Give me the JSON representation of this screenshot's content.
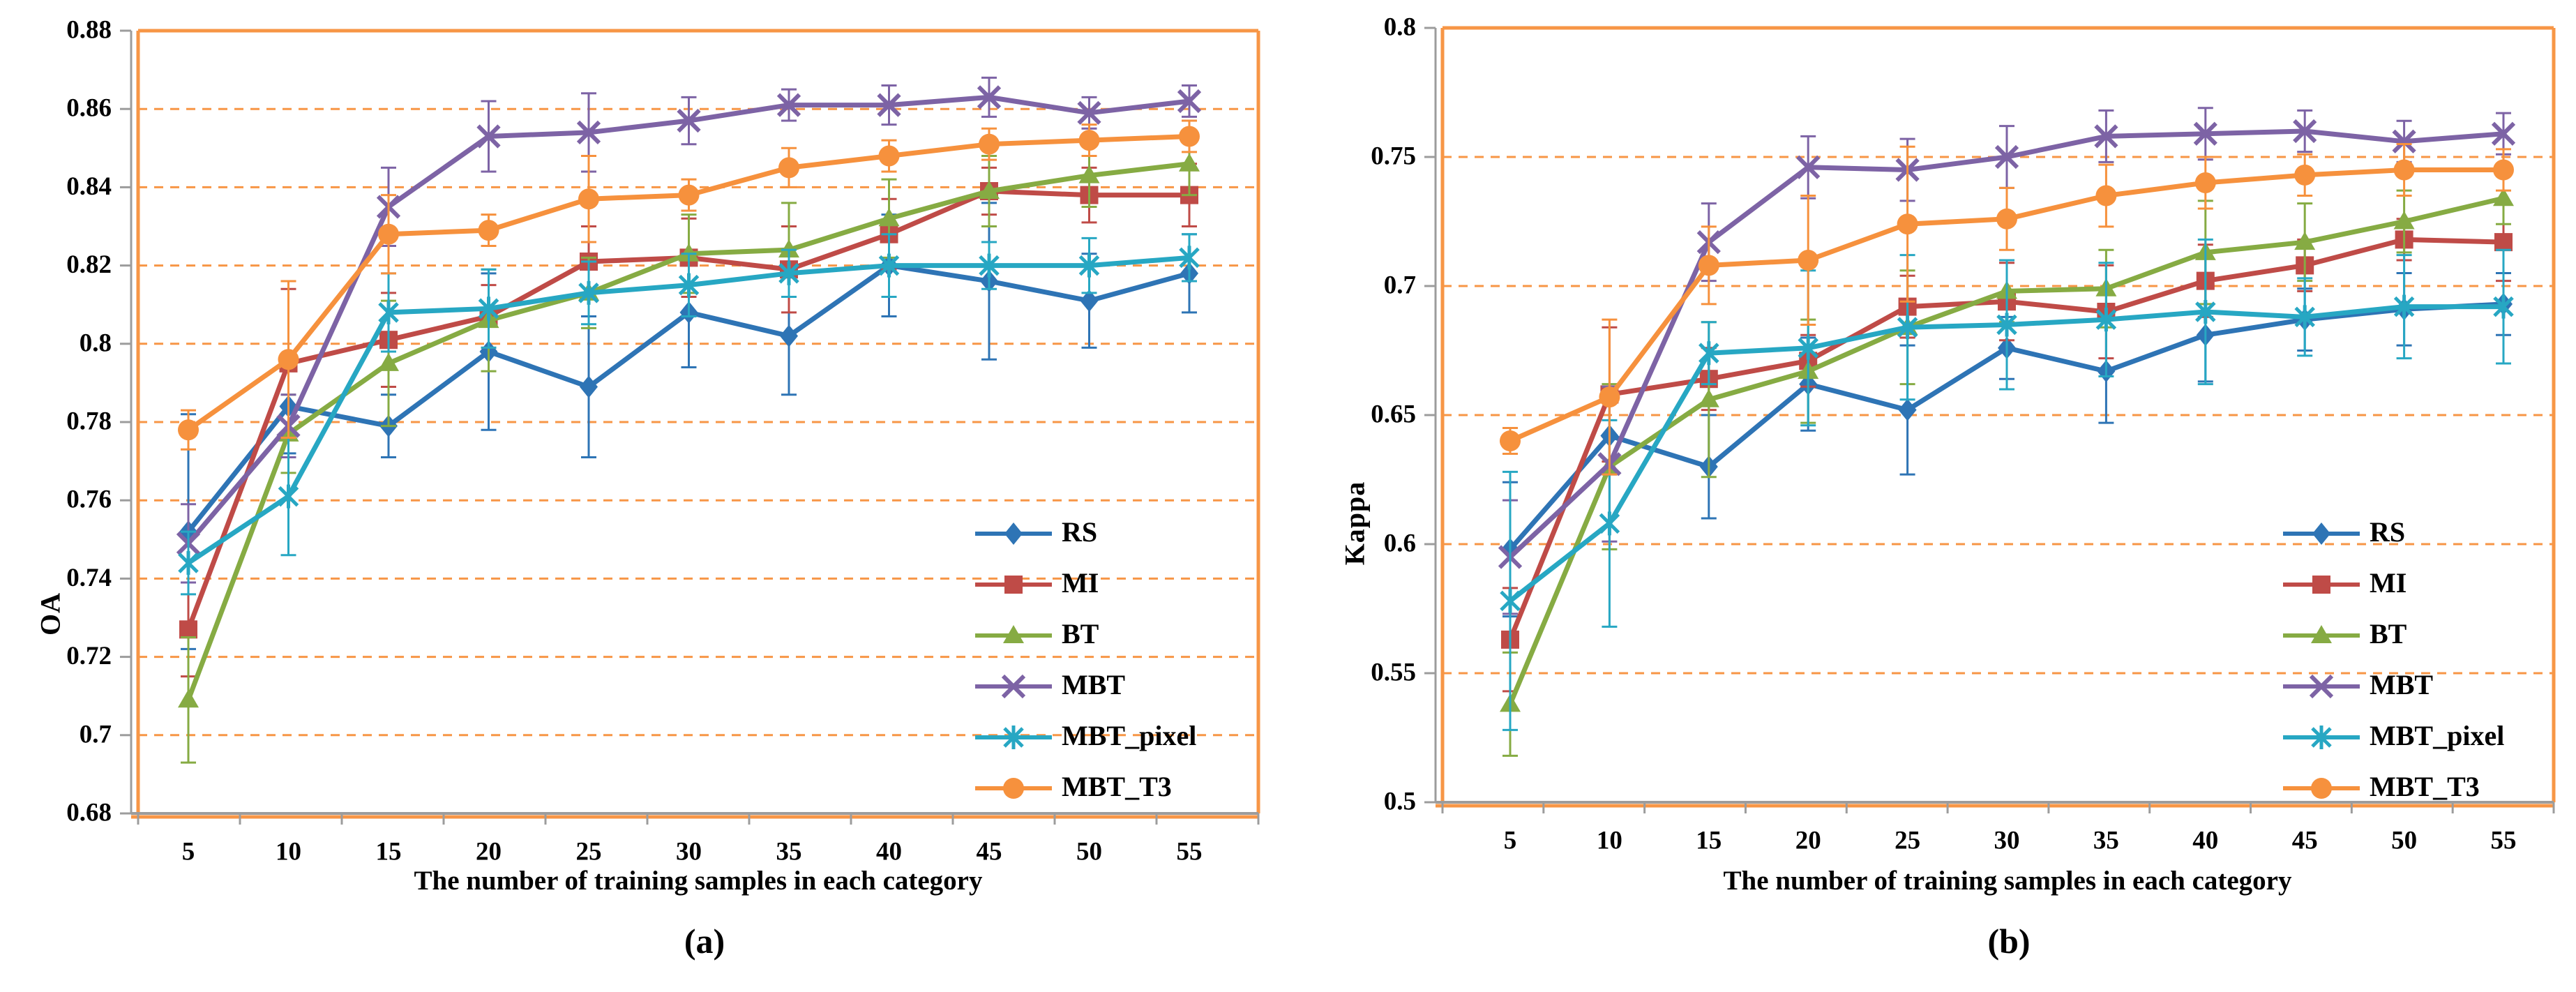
{
  "figure": {
    "captions": [
      "(a)",
      "(b)"
    ],
    "colors": {
      "grid_orange": "#F79646",
      "axis_gray": "#9C9C9C",
      "text": "#000000"
    }
  },
  "chart_data": [
    {
      "type": "line",
      "title": "",
      "ylabel": "OA",
      "xlabel": "The number of training samples in each category",
      "categories": [
        5,
        10,
        15,
        20,
        25,
        30,
        35,
        40,
        45,
        50,
        55
      ],
      "ylim": [
        0.68,
        0.88
      ],
      "ytick_labels": [
        "0.88",
        "0.86",
        "0.84",
        "0.82",
        "0.8",
        "0.78",
        "0.76",
        "0.74",
        "0.72",
        "0.7",
        "0.68"
      ],
      "grid": true,
      "legend_position": "inside-right-bottom",
      "series": [
        {
          "name": "RS",
          "marker": "diamond",
          "color": "#2E74B5",
          "values": [
            0.752,
            0.784,
            0.779,
            0.798,
            0.789,
            0.808,
            0.802,
            0.82,
            0.816,
            0.811,
            0.818
          ],
          "errors": [
            0.03,
            0.012,
            0.008,
            0.02,
            0.018,
            0.014,
            0.015,
            0.013,
            0.02,
            0.012,
            0.01
          ]
        },
        {
          "name": "MI",
          "marker": "square",
          "color": "#BF4B47",
          "values": [
            0.727,
            0.795,
            0.801,
            0.807,
            0.821,
            0.822,
            0.819,
            0.828,
            0.839,
            0.838,
            0.838
          ],
          "errors": [
            0.012,
            0.019,
            0.012,
            0.008,
            0.009,
            0.01,
            0.011,
            0.009,
            0.006,
            0.007,
            0.008
          ]
        },
        {
          "name": "BT",
          "marker": "triangle",
          "color": "#86AB43",
          "values": [
            0.709,
            0.777,
            0.795,
            0.806,
            0.813,
            0.823,
            0.824,
            0.832,
            0.839,
            0.843,
            0.846
          ],
          "errors": [
            0.016,
            0.01,
            0.016,
            0.013,
            0.009,
            0.01,
            0.012,
            0.01,
            0.009,
            0.008,
            0.008
          ]
        },
        {
          "name": "MBT",
          "marker": "xcross",
          "color": "#7D63A5",
          "values": [
            0.749,
            0.779,
            0.835,
            0.853,
            0.854,
            0.857,
            0.861,
            0.861,
            0.863,
            0.859,
            0.862
          ],
          "errors": [
            0.01,
            0.008,
            0.01,
            0.009,
            0.01,
            0.006,
            0.004,
            0.005,
            0.005,
            0.004,
            0.004
          ]
        },
        {
          "name": "MBT_pixel",
          "marker": "asterisk",
          "color": "#27A7C3",
          "values": [
            0.744,
            0.761,
            0.808,
            0.809,
            0.813,
            0.815,
            0.818,
            0.82,
            0.82,
            0.82,
            0.822
          ],
          "errors": [
            0.008,
            0.015,
            0.01,
            0.01,
            0.008,
            0.008,
            0.006,
            0.008,
            0.006,
            0.007,
            0.006
          ]
        },
        {
          "name": "MBT_T3",
          "marker": "circle",
          "color": "#F6913D",
          "values": [
            0.778,
            0.796,
            0.828,
            0.829,
            0.837,
            0.838,
            0.845,
            0.848,
            0.851,
            0.852,
            0.853
          ],
          "errors": [
            0.005,
            0.02,
            0.01,
            0.004,
            0.011,
            0.004,
            0.005,
            0.004,
            0.004,
            0.004,
            0.004
          ]
        }
      ]
    },
    {
      "type": "line",
      "title": "",
      "ylabel": "Kappa",
      "xlabel": "The number of training samples in each category",
      "categories": [
        5,
        10,
        15,
        20,
        25,
        30,
        35,
        40,
        45,
        50,
        55
      ],
      "ylim": [
        0.5,
        0.8
      ],
      "ytick_labels": [
        "0.8",
        "0.75",
        "0.7",
        "0.65",
        "0.6",
        "0.55",
        "0.5"
      ],
      "grid": true,
      "legend_position": "inside-right-bottom",
      "series": [
        {
          "name": "RS",
          "marker": "diamond",
          "color": "#2E74B5",
          "values": [
            0.598,
            0.642,
            0.63,
            0.662,
            0.652,
            0.676,
            0.667,
            0.681,
            0.687,
            0.691,
            0.693
          ],
          "errors": [
            0.026,
            0.015,
            0.02,
            0.018,
            0.025,
            0.012,
            0.02,
            0.018,
            0.012,
            0.014,
            0.012
          ]
        },
        {
          "name": "MI",
          "marker": "square",
          "color": "#BF4B47",
          "values": [
            0.563,
            0.658,
            0.664,
            0.671,
            0.692,
            0.694,
            0.69,
            0.702,
            0.708,
            0.718,
            0.717
          ],
          "errors": [
            0.02,
            0.026,
            0.012,
            0.01,
            0.012,
            0.015,
            0.018,
            0.014,
            0.01,
            0.008,
            0.015
          ]
        },
        {
          "name": "BT",
          "marker": "triangle",
          "color": "#86AB43",
          "values": [
            0.538,
            0.63,
            0.656,
            0.667,
            0.684,
            0.698,
            0.699,
            0.713,
            0.717,
            0.725,
            0.734
          ],
          "errors": [
            0.02,
            0.032,
            0.03,
            0.02,
            0.022,
            0.012,
            0.015,
            0.02,
            0.015,
            0.012,
            0.01
          ]
        },
        {
          "name": "MBT",
          "marker": "xcross",
          "color": "#7D63A5",
          "values": [
            0.595,
            0.631,
            0.717,
            0.746,
            0.745,
            0.75,
            0.758,
            0.759,
            0.76,
            0.756,
            0.759
          ],
          "errors": [
            0.022,
            0.03,
            0.015,
            0.012,
            0.012,
            0.012,
            0.01,
            0.01,
            0.008,
            0.008,
            0.008
          ]
        },
        {
          "name": "MBT_pixel",
          "marker": "asterisk",
          "color": "#27A7C3",
          "values": [
            0.578,
            0.608,
            0.674,
            0.676,
            0.684,
            0.685,
            0.687,
            0.69,
            0.688,
            0.692,
            0.692
          ],
          "errors": [
            0.05,
            0.04,
            0.012,
            0.03,
            0.028,
            0.025,
            0.022,
            0.028,
            0.015,
            0.02,
            0.022
          ]
        },
        {
          "name": "MBT_T3",
          "marker": "circle",
          "color": "#F6913D",
          "values": [
            0.64,
            0.657,
            0.708,
            0.71,
            0.724,
            0.726,
            0.735,
            0.74,
            0.743,
            0.745,
            0.745
          ],
          "errors": [
            0.005,
            0.03,
            0.015,
            0.025,
            0.03,
            0.012,
            0.012,
            0.01,
            0.008,
            0.01,
            0.008
          ]
        }
      ]
    }
  ]
}
